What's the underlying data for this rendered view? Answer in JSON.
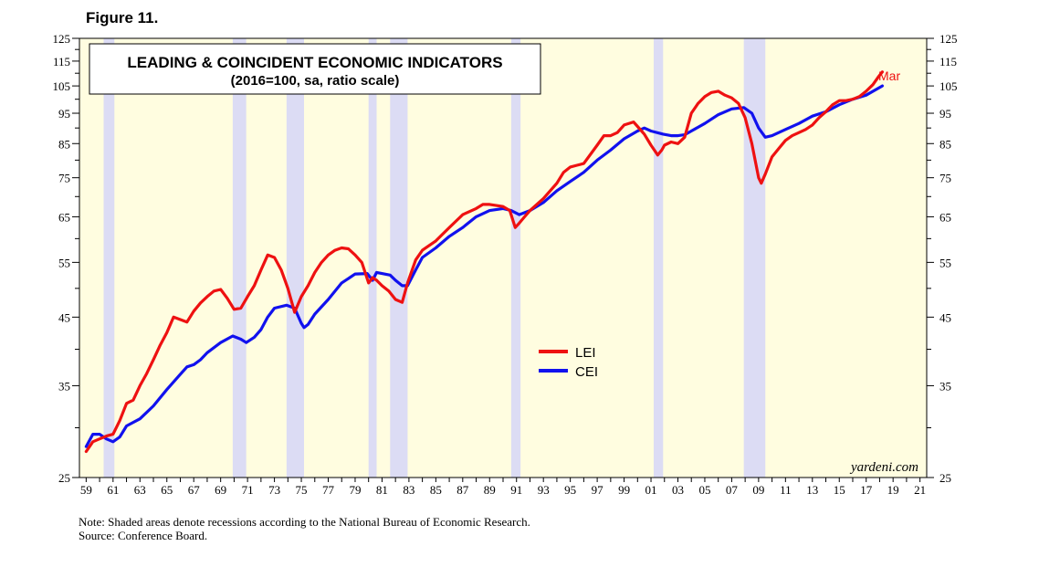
{
  "figure_label": "Figure 11.",
  "title": "LEADING & COINCIDENT ECONOMIC INDICATORS",
  "subtitle": "(2016=100, sa, ratio scale)",
  "watermark": "yardeni.com",
  "end_label": "Mar",
  "note": "Note: Shaded areas denote recessions according to the National Bureau of Economic Research.",
  "source": "Source: Conference Board.",
  "colors": {
    "background": "#fffde0",
    "recession": "#dcdcf4",
    "lei": "#ee1111",
    "cei": "#1111ee"
  },
  "chart_data": {
    "type": "line",
    "yscale": "log",
    "ylim": [
      25,
      125
    ],
    "xlim": [
      1958.5,
      2021.5
    ],
    "yticks": [
      25,
      35,
      45,
      55,
      65,
      75,
      85,
      95,
      105,
      115,
      125
    ],
    "xticks": [
      "59",
      "61",
      "63",
      "65",
      "67",
      "69",
      "71",
      "73",
      "75",
      "77",
      "79",
      "81",
      "83",
      "85",
      "87",
      "89",
      "91",
      "93",
      "95",
      "97",
      "99",
      "01",
      "03",
      "05",
      "07",
      "09",
      "11",
      "13",
      "15",
      "17",
      "19",
      "21"
    ],
    "recessions": [
      [
        1960.3,
        1961.1
      ],
      [
        1969.9,
        1970.9
      ],
      [
        1973.9,
        1975.2
      ],
      [
        1980.0,
        1980.6
      ],
      [
        1981.6,
        1982.9
      ],
      [
        1990.6,
        1991.3
      ],
      [
        2001.2,
        2001.9
      ],
      [
        2007.9,
        2009.5
      ]
    ],
    "legend": [
      "LEI",
      "CEI"
    ],
    "series": [
      {
        "name": "LEI",
        "color": "#ee1111",
        "x": [
          1959.0,
          1959.5,
          1960.0,
          1960.5,
          1961.0,
          1961.5,
          1962.0,
          1962.5,
          1963.0,
          1963.5,
          1964.0,
          1964.5,
          1965.0,
          1965.5,
          1966.0,
          1966.5,
          1967.0,
          1967.5,
          1968.0,
          1968.5,
          1969.0,
          1969.5,
          1970.0,
          1970.5,
          1971.0,
          1971.5,
          1972.0,
          1972.5,
          1973.0,
          1973.5,
          1974.0,
          1974.5,
          1975.0,
          1975.5,
          1976.0,
          1976.5,
          1977.0,
          1977.5,
          1978.0,
          1978.5,
          1979.0,
          1979.5,
          1980.0,
          1980.3,
          1980.6,
          1981.0,
          1981.5,
          1982.0,
          1982.5,
          1982.9,
          1983.5,
          1984.0,
          1984.5,
          1985.0,
          1986.0,
          1987.0,
          1988.0,
          1988.5,
          1989.0,
          1990.0,
          1990.5,
          1990.9,
          1991.2,
          1991.6,
          1992.0,
          1993.0,
          1994.0,
          1994.5,
          1995.0,
          1995.5,
          1996.0,
          1997.0,
          1997.5,
          1998.0,
          1998.5,
          1999.0,
          1999.7,
          2000.0,
          2000.5,
          2001.0,
          2001.5,
          2001.8,
          2002.0,
          2002.5,
          2003.0,
          2003.5,
          2004.0,
          2004.5,
          2005.0,
          2005.5,
          2006.0,
          2006.5,
          2007.0,
          2007.5,
          2008.0,
          2008.5,
          2009.0,
          2009.2,
          2009.5,
          2010.0,
          2010.5,
          2011.0,
          2011.5,
          2012.0,
          2012.5,
          2013.0,
          2013.5,
          2014.0,
          2014.5,
          2015.0,
          2015.5,
          2016.0,
          2016.5,
          2017.0,
          2017.5,
          2017.9,
          2018.2
        ],
        "y": [
          27.5,
          28.5,
          28.8,
          29.1,
          29.3,
          30.8,
          32.8,
          33.2,
          35.0,
          36.6,
          38.5,
          40.6,
          42.5,
          45.0,
          44.6,
          44.2,
          46.0,
          47.4,
          48.5,
          49.5,
          49.8,
          48.2,
          46.3,
          46.5,
          48.5,
          50.5,
          53.5,
          56.5,
          56.0,
          53.5,
          50.0,
          45.8,
          48.5,
          50.5,
          53.0,
          55.0,
          56.5,
          57.5,
          58.0,
          57.8,
          56.5,
          55.0,
          51.0,
          52.0,
          51.5,
          50.5,
          49.5,
          48.0,
          47.5,
          51.0,
          55.5,
          57.5,
          58.5,
          59.5,
          62.5,
          65.5,
          67.0,
          68.0,
          68.0,
          67.5,
          66.5,
          62.5,
          63.5,
          65.0,
          66.5,
          69.5,
          73.5,
          76.5,
          78.0,
          78.5,
          79.0,
          84.5,
          87.5,
          87.5,
          88.5,
          91.0,
          92.0,
          90.5,
          88.0,
          84.5,
          81.5,
          83.0,
          84.5,
          85.5,
          85.0,
          87.0,
          95.0,
          98.5,
          101.0,
          102.5,
          103.0,
          101.5,
          100.5,
          98.5,
          93.5,
          85.0,
          75.0,
          73.5,
          76.0,
          81.0,
          83.5,
          86.0,
          87.5,
          88.5,
          89.5,
          91.0,
          93.5,
          95.5,
          98.0,
          99.5,
          99.5,
          100.0,
          101.0,
          103.0,
          105.5,
          108.5,
          110.5
        ]
      },
      {
        "name": "CEI",
        "color": "#1111ee",
        "x": [
          1959.0,
          1959.5,
          1960.0,
          1960.5,
          1961.0,
          1961.5,
          1962.0,
          1963.0,
          1964.0,
          1965.0,
          1966.0,
          1966.5,
          1967.0,
          1967.5,
          1968.0,
          1969.0,
          1969.9,
          1970.5,
          1970.9,
          1971.5,
          1972.0,
          1972.5,
          1973.0,
          1973.9,
          1974.5,
          1975.0,
          1975.2,
          1975.5,
          1976.0,
          1977.0,
          1978.0,
          1979.0,
          1979.9,
          1980.3,
          1980.6,
          1981.0,
          1981.6,
          1982.0,
          1982.5,
          1982.9,
          1983.5,
          1984.0,
          1985.0,
          1986.0,
          1987.0,
          1988.0,
          1989.0,
          1990.0,
          1990.6,
          1991.2,
          1992.0,
          1993.0,
          1994.0,
          1995.0,
          1996.0,
          1997.0,
          1998.0,
          1999.0,
          2000.0,
          2000.5,
          2001.0,
          2001.9,
          2002.5,
          2003.0,
          2003.5,
          2004.0,
          2005.0,
          2006.0,
          2007.0,
          2007.9,
          2008.5,
          2009.0,
          2009.5,
          2010.0,
          2011.0,
          2012.0,
          2013.0,
          2014.0,
          2015.0,
          2016.0,
          2017.0,
          2018.2
        ],
        "y": [
          28.0,
          29.3,
          29.3,
          28.8,
          28.5,
          29.0,
          30.2,
          31.0,
          32.5,
          34.5,
          36.5,
          37.5,
          37.8,
          38.5,
          39.5,
          41.0,
          42.0,
          41.5,
          41.0,
          41.8,
          43.0,
          45.0,
          46.5,
          47.0,
          46.5,
          44.0,
          43.3,
          43.8,
          45.5,
          48.0,
          51.0,
          52.7,
          52.8,
          51.5,
          53.0,
          52.8,
          52.5,
          51.5,
          50.5,
          50.5,
          53.5,
          56.0,
          58.0,
          60.5,
          62.5,
          65.0,
          66.5,
          67.0,
          66.5,
          65.5,
          66.5,
          68.5,
          71.5,
          74.0,
          76.5,
          80.0,
          83.0,
          86.5,
          89.0,
          90.0,
          89.0,
          88.0,
          87.5,
          87.5,
          87.8,
          89.0,
          91.5,
          94.5,
          96.5,
          97.0,
          95.0,
          90.0,
          87.0,
          87.5,
          89.5,
          91.5,
          94.0,
          95.5,
          98.0,
          100.0,
          101.5,
          105.0
        ]
      }
    ]
  }
}
